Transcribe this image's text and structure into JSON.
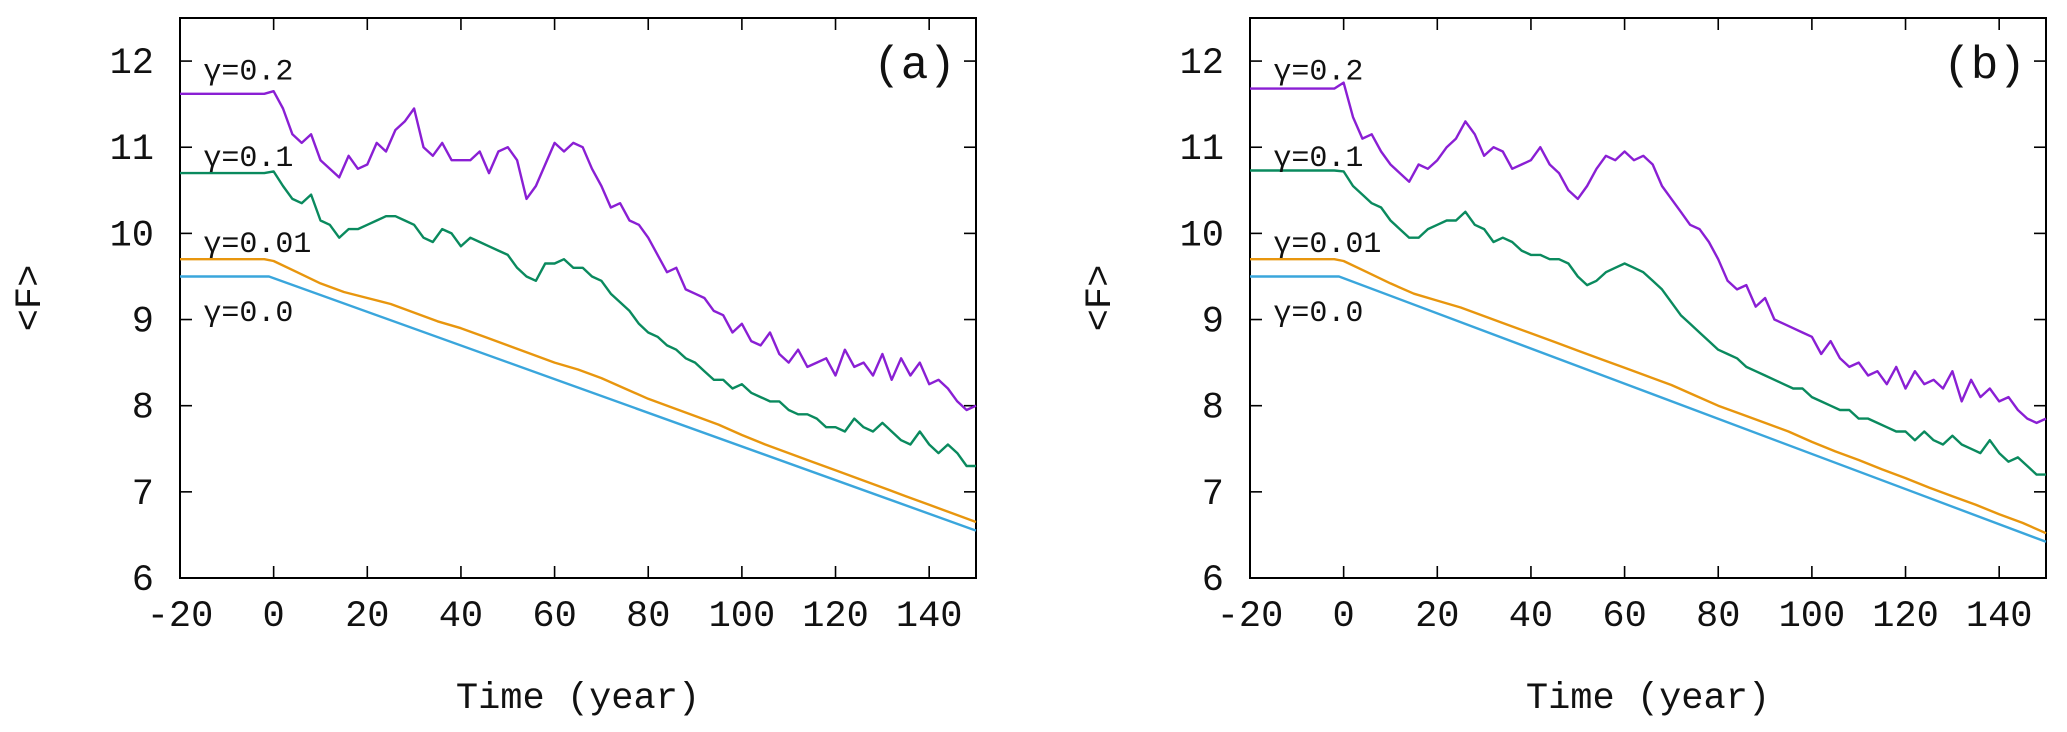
{
  "chart_data": [
    {
      "type": "line",
      "panel_label": "(a)",
      "xlabel": "Time (year)",
      "ylabel": "<F>",
      "xlim": [
        -20,
        150
      ],
      "ylim": [
        6,
        12.5
      ],
      "xticks": [
        "-20",
        "0",
        "20",
        "40",
        "60",
        "80",
        "100",
        "120",
        "140"
      ],
      "xtick_values": [
        -20,
        0,
        20,
        40,
        60,
        80,
        100,
        120,
        140
      ],
      "yticks": [
        "6",
        "7",
        "8",
        "9",
        "10",
        "11",
        "12"
      ],
      "ytick_values": [
        6,
        7,
        8,
        9,
        10,
        11,
        12
      ],
      "series": [
        {
          "name": "γ=0.2",
          "color": "#8a1fd4",
          "label_x": -15,
          "label_y": 11.9,
          "x": [
            -20,
            -10,
            -2,
            0,
            2,
            4,
            6,
            8,
            10,
            12,
            14,
            16,
            18,
            20,
            22,
            24,
            26,
            28,
            30,
            32,
            34,
            36,
            38,
            40,
            42,
            44,
            46,
            48,
            50,
            52,
            54,
            56,
            58,
            60,
            62,
            64,
            66,
            68,
            70,
            72,
            74,
            76,
            78,
            80,
            82,
            84,
            86,
            88,
            90,
            92,
            94,
            96,
            98,
            100,
            102,
            104,
            106,
            108,
            110,
            112,
            114,
            116,
            118,
            120,
            122,
            124,
            126,
            128,
            130,
            132,
            134,
            136,
            138,
            140,
            142,
            144,
            146,
            148,
            150
          ],
          "y": [
            11.62,
            11.62,
            11.62,
            11.65,
            11.45,
            11.15,
            11.05,
            11.15,
            10.85,
            10.75,
            10.65,
            10.9,
            10.75,
            10.8,
            11.05,
            10.95,
            11.2,
            11.3,
            11.45,
            11.0,
            10.9,
            11.05,
            10.85,
            10.85,
            10.85,
            10.95,
            10.7,
            10.95,
            11.0,
            10.85,
            10.4,
            10.55,
            10.8,
            11.05,
            10.95,
            11.05,
            11.0,
            10.75,
            10.55,
            10.3,
            10.35,
            10.15,
            10.1,
            9.95,
            9.75,
            9.55,
            9.6,
            9.35,
            9.3,
            9.25,
            9.1,
            9.05,
            8.85,
            8.95,
            8.75,
            8.7,
            8.85,
            8.6,
            8.5,
            8.65,
            8.45,
            8.5,
            8.55,
            8.35,
            8.65,
            8.45,
            8.5,
            8.35,
            8.6,
            8.3,
            8.55,
            8.35,
            8.5,
            8.25,
            8.3,
            8.2,
            8.05,
            7.95,
            8.0
          ]
        },
        {
          "name": "γ=0.1",
          "color": "#0a8a5e",
          "label_x": -15,
          "label_y": 10.9,
          "x": [
            -20,
            -10,
            -2,
            0,
            2,
            4,
            6,
            8,
            10,
            12,
            14,
            16,
            18,
            20,
            22,
            24,
            26,
            28,
            30,
            32,
            34,
            36,
            38,
            40,
            42,
            44,
            46,
            48,
            50,
            52,
            54,
            56,
            58,
            60,
            62,
            64,
            66,
            68,
            70,
            72,
            74,
            76,
            78,
            80,
            82,
            84,
            86,
            88,
            90,
            92,
            94,
            96,
            98,
            100,
            102,
            104,
            106,
            108,
            110,
            112,
            114,
            116,
            118,
            120,
            122,
            124,
            126,
            128,
            130,
            132,
            134,
            136,
            138,
            140,
            142,
            144,
            146,
            148,
            150
          ],
          "y": [
            10.7,
            10.7,
            10.7,
            10.72,
            10.55,
            10.4,
            10.35,
            10.45,
            10.15,
            10.1,
            9.95,
            10.05,
            10.05,
            10.1,
            10.15,
            10.2,
            10.2,
            10.15,
            10.1,
            9.95,
            9.9,
            10.05,
            10.0,
            9.85,
            9.95,
            9.9,
            9.85,
            9.8,
            9.75,
            9.6,
            9.5,
            9.45,
            9.65,
            9.65,
            9.7,
            9.6,
            9.6,
            9.5,
            9.45,
            9.3,
            9.2,
            9.1,
            8.95,
            8.85,
            8.8,
            8.7,
            8.65,
            8.55,
            8.5,
            8.4,
            8.3,
            8.3,
            8.2,
            8.25,
            8.15,
            8.1,
            8.05,
            8.05,
            7.95,
            7.9,
            7.9,
            7.85,
            7.75,
            7.75,
            7.7,
            7.85,
            7.75,
            7.7,
            7.8,
            7.7,
            7.6,
            7.55,
            7.7,
            7.55,
            7.45,
            7.55,
            7.45,
            7.3,
            7.3
          ]
        },
        {
          "name": "γ=0.01",
          "color": "#e8960e",
          "label_x": -15,
          "label_y": 9.9,
          "x": [
            -20,
            -10,
            -2,
            0,
            5,
            10,
            15,
            20,
            25,
            30,
            35,
            40,
            45,
            50,
            55,
            60,
            65,
            70,
            75,
            80,
            85,
            90,
            95,
            100,
            105,
            110,
            115,
            120,
            125,
            130,
            135,
            140,
            145,
            150
          ],
          "y": [
            9.7,
            9.7,
            9.7,
            9.68,
            9.55,
            9.42,
            9.32,
            9.25,
            9.18,
            9.08,
            8.98,
            8.9,
            8.8,
            8.7,
            8.6,
            8.5,
            8.42,
            8.32,
            8.2,
            8.08,
            7.98,
            7.88,
            7.78,
            7.66,
            7.55,
            7.45,
            7.35,
            7.25,
            7.15,
            7.05,
            6.95,
            6.85,
            6.75,
            6.65
          ]
        },
        {
          "name": "γ=0.0",
          "color": "#3aa6dc",
          "label_x": -15,
          "label_y": 9.1,
          "x": [
            -20,
            -1,
            150
          ],
          "y": [
            9.5,
            9.5,
            6.55
          ]
        }
      ]
    },
    {
      "type": "line",
      "panel_label": "(b)",
      "xlabel": "Time (year)",
      "ylabel": "<F>",
      "xlim": [
        -20,
        150
      ],
      "ylim": [
        6,
        12.5
      ],
      "xticks": [
        "-20",
        "0",
        "20",
        "40",
        "60",
        "80",
        "100",
        "120",
        "140"
      ],
      "xtick_values": [
        -20,
        0,
        20,
        40,
        60,
        80,
        100,
        120,
        140
      ],
      "yticks": [
        "6",
        "7",
        "8",
        "9",
        "10",
        "11",
        "12"
      ],
      "ytick_values": [
        6,
        7,
        8,
        9,
        10,
        11,
        12
      ],
      "series": [
        {
          "name": "γ=0.2",
          "color": "#8a1fd4",
          "label_x": -15,
          "label_y": 11.9,
          "x": [
            -20,
            -10,
            -2,
            0,
            2,
            4,
            6,
            8,
            10,
            12,
            14,
            16,
            18,
            20,
            22,
            24,
            26,
            28,
            30,
            32,
            34,
            36,
            38,
            40,
            42,
            44,
            46,
            48,
            50,
            52,
            54,
            56,
            58,
            60,
            62,
            64,
            66,
            68,
            70,
            72,
            74,
            76,
            78,
            80,
            82,
            84,
            86,
            88,
            90,
            92,
            94,
            96,
            98,
            100,
            102,
            104,
            106,
            108,
            110,
            112,
            114,
            116,
            118,
            120,
            122,
            124,
            126,
            128,
            130,
            132,
            134,
            136,
            138,
            140,
            142,
            144,
            146,
            148,
            150
          ],
          "y": [
            11.68,
            11.68,
            11.68,
            11.75,
            11.35,
            11.1,
            11.15,
            10.95,
            10.8,
            10.7,
            10.6,
            10.8,
            10.75,
            10.85,
            11.0,
            11.1,
            11.3,
            11.15,
            10.9,
            11.0,
            10.95,
            10.75,
            10.8,
            10.85,
            11.0,
            10.8,
            10.7,
            10.5,
            10.4,
            10.55,
            10.75,
            10.9,
            10.85,
            10.95,
            10.85,
            10.9,
            10.8,
            10.55,
            10.4,
            10.25,
            10.1,
            10.05,
            9.9,
            9.7,
            9.45,
            9.35,
            9.4,
            9.15,
            9.25,
            9.0,
            8.95,
            8.9,
            8.85,
            8.8,
            8.6,
            8.75,
            8.55,
            8.45,
            8.5,
            8.35,
            8.4,
            8.25,
            8.45,
            8.2,
            8.4,
            8.25,
            8.3,
            8.2,
            8.4,
            8.05,
            8.3,
            8.1,
            8.2,
            8.05,
            8.1,
            7.95,
            7.85,
            7.8,
            7.85
          ]
        },
        {
          "name": "γ=0.1",
          "color": "#0a8a5e",
          "label_x": -15,
          "label_y": 10.9,
          "x": [
            -20,
            -10,
            -2,
            0,
            2,
            4,
            6,
            8,
            10,
            12,
            14,
            16,
            18,
            20,
            22,
            24,
            26,
            28,
            30,
            32,
            34,
            36,
            38,
            40,
            42,
            44,
            46,
            48,
            50,
            52,
            54,
            56,
            58,
            60,
            62,
            64,
            66,
            68,
            70,
            72,
            74,
            76,
            78,
            80,
            82,
            84,
            86,
            88,
            90,
            92,
            94,
            96,
            98,
            100,
            102,
            104,
            106,
            108,
            110,
            112,
            114,
            116,
            118,
            120,
            122,
            124,
            126,
            128,
            130,
            132,
            134,
            136,
            138,
            140,
            142,
            144,
            146,
            148,
            150
          ],
          "y": [
            10.73,
            10.73,
            10.73,
            10.72,
            10.55,
            10.45,
            10.35,
            10.3,
            10.15,
            10.05,
            9.95,
            9.95,
            10.05,
            10.1,
            10.15,
            10.15,
            10.25,
            10.1,
            10.05,
            9.9,
            9.95,
            9.9,
            9.8,
            9.75,
            9.75,
            9.7,
            9.7,
            9.65,
            9.5,
            9.4,
            9.45,
            9.55,
            9.6,
            9.65,
            9.6,
            9.55,
            9.45,
            9.35,
            9.2,
            9.05,
            8.95,
            8.85,
            8.75,
            8.65,
            8.6,
            8.55,
            8.45,
            8.4,
            8.35,
            8.3,
            8.25,
            8.2,
            8.2,
            8.1,
            8.05,
            8.0,
            7.95,
            7.95,
            7.85,
            7.85,
            7.8,
            7.75,
            7.7,
            7.7,
            7.6,
            7.7,
            7.6,
            7.55,
            7.65,
            7.55,
            7.5,
            7.45,
            7.6,
            7.45,
            7.35,
            7.4,
            7.3,
            7.2,
            7.2
          ]
        },
        {
          "name": "γ=0.01",
          "color": "#e8960e",
          "label_x": -15,
          "label_y": 9.9,
          "x": [
            -20,
            -10,
            -2,
            0,
            5,
            10,
            15,
            20,
            25,
            30,
            35,
            40,
            45,
            50,
            55,
            60,
            65,
            70,
            75,
            80,
            85,
            90,
            95,
            100,
            105,
            110,
            115,
            120,
            125,
            130,
            135,
            140,
            145,
            150
          ],
          "y": [
            9.7,
            9.7,
            9.7,
            9.68,
            9.55,
            9.42,
            9.3,
            9.22,
            9.14,
            9.04,
            8.94,
            8.84,
            8.74,
            8.64,
            8.54,
            8.44,
            8.34,
            8.24,
            8.12,
            8.0,
            7.9,
            7.8,
            7.7,
            7.58,
            7.47,
            7.37,
            7.26,
            7.16,
            7.05,
            6.95,
            6.85,
            6.74,
            6.64,
            6.52
          ]
        },
        {
          "name": "γ=0.0",
          "color": "#3aa6dc",
          "label_x": -15,
          "label_y": 9.1,
          "x": [
            -20,
            -1,
            150
          ],
          "y": [
            9.5,
            9.5,
            6.42
          ]
        }
      ]
    }
  ]
}
